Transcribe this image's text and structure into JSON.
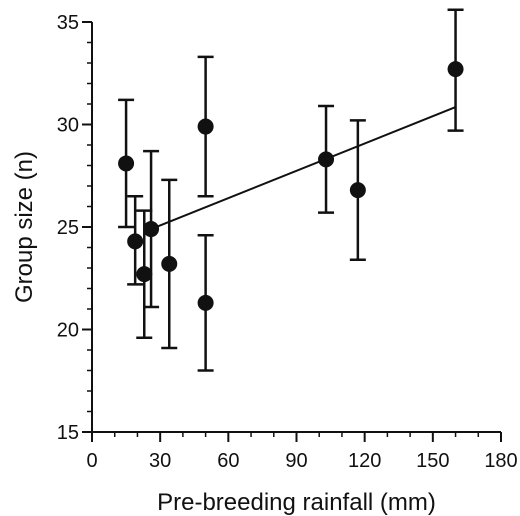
{
  "chart_data": {
    "type": "scatter",
    "title": "",
    "xlabel": "Pre-breeding rainfall (mm)",
    "ylabel": "Group size (n)",
    "xlim": [
      0,
      180
    ],
    "ylim": [
      15,
      35
    ],
    "xticks": [
      0,
      30,
      60,
      90,
      120,
      150,
      180
    ],
    "yticks": [
      15,
      20,
      25,
      30,
      35
    ],
    "x_minor_step": 10,
    "y_minor_step": 1,
    "grid": false,
    "legend": "none",
    "points": [
      {
        "x": 15,
        "y": 28.1,
        "err_low": 25.0,
        "err_high": 31.2
      },
      {
        "x": 19,
        "y": 24.3,
        "err_low": 22.2,
        "err_high": 26.5
      },
      {
        "x": 23,
        "y": 22.7,
        "err_low": 19.6,
        "err_high": 25.8
      },
      {
        "x": 26,
        "y": 24.9,
        "err_low": 21.1,
        "err_high": 28.7
      },
      {
        "x": 34,
        "y": 23.2,
        "err_low": 19.1,
        "err_high": 27.3
      },
      {
        "x": 50,
        "y": 21.3,
        "err_low": 18.0,
        "err_high": 24.6
      },
      {
        "x": 50,
        "y": 29.9,
        "err_low": 26.5,
        "err_high": 33.3
      },
      {
        "x": 103,
        "y": 28.3,
        "err_low": 25.7,
        "err_high": 30.9
      },
      {
        "x": 117,
        "y": 26.8,
        "err_low": 23.4,
        "err_high": 30.2
      },
      {
        "x": 160,
        "y": 32.7,
        "err_low": 29.7,
        "err_high": 35.6
      }
    ],
    "fit_line": {
      "x": [
        26,
        160
      ],
      "y": [
        24.9,
        30.85
      ]
    },
    "colors": {
      "marker": "#111111",
      "axis": "#111111"
    }
  }
}
